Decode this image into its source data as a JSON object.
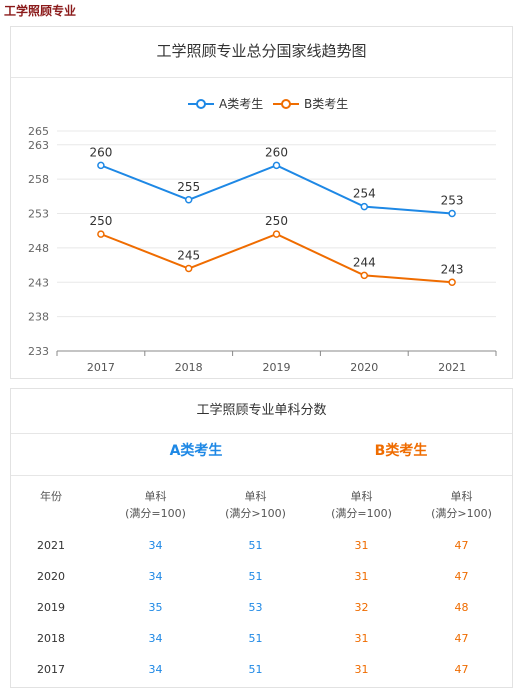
{
  "page_header": "工学照顾专业",
  "chart_data": {
    "type": "line",
    "title": "工学照顾专业总分国家线趋势图",
    "categories": [
      "2017",
      "2018",
      "2019",
      "2020",
      "2021"
    ],
    "series": [
      {
        "name": "A类考生",
        "color": "#1e88e5",
        "values": [
          260,
          255,
          260,
          254,
          253
        ]
      },
      {
        "name": "B类考生",
        "color": "#ef6c00",
        "values": [
          250,
          245,
          250,
          244,
          243
        ]
      }
    ],
    "y_ticks": [
      233,
      238,
      243,
      248,
      253,
      258,
      263,
      265
    ],
    "ylim": [
      233,
      265
    ],
    "grid": true,
    "legend_position": "top-center"
  },
  "table": {
    "title": "工学照顾专业单科分数",
    "group_a": "A类考生",
    "group_b": "B类考生",
    "headers": [
      {
        "line1": "年份",
        "line2": ""
      },
      {
        "line1": "单科",
        "line2": "(满分=100)"
      },
      {
        "line1": "单科",
        "line2": "(满分>100)"
      },
      {
        "line1": "单科",
        "line2": "(满分=100)"
      },
      {
        "line1": "单科",
        "line2": "(满分>100)"
      }
    ],
    "rows": [
      {
        "year": "2021",
        "a1": "34",
        "a2": "51",
        "b1": "31",
        "b2": "47"
      },
      {
        "year": "2020",
        "a1": "34",
        "a2": "51",
        "b1": "31",
        "b2": "47"
      },
      {
        "year": "2019",
        "a1": "35",
        "a2": "53",
        "b1": "32",
        "b2": "48"
      },
      {
        "year": "2018",
        "a1": "34",
        "a2": "51",
        "b1": "31",
        "b2": "47"
      },
      {
        "year": "2017",
        "a1": "34",
        "a2": "51",
        "b1": "31",
        "b2": "47"
      }
    ]
  }
}
